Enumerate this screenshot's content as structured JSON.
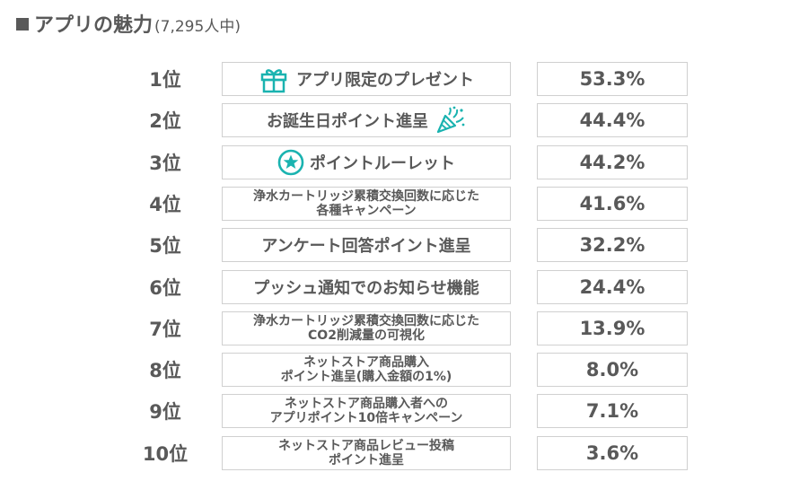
{
  "header": {
    "title": "アプリの魅力",
    "respondents": "(7,295人中)"
  },
  "colors": {
    "text": "#595959",
    "accent": "#1ab3b0",
    "border": "#d0d0d0"
  },
  "chart_data": {
    "type": "table",
    "rows": [
      {
        "rank": "1位",
        "label": "アプリ限定のプレゼント",
        "value": "53.3%",
        "icon": "gift-icon"
      },
      {
        "rank": "2位",
        "label": "お誕生日ポイント進呈",
        "value": "44.4%",
        "icon": "party-popper-icon"
      },
      {
        "rank": "3位",
        "label": "ポイントルーレット",
        "value": "44.2%",
        "icon": "star-circle-icon"
      },
      {
        "rank": "4位",
        "label": "浄水カートリッジ累積交換回数に応じた\n各種キャンペーン",
        "value": "41.6%"
      },
      {
        "rank": "5位",
        "label": "アンケート回答ポイント進呈",
        "value": "32.2%"
      },
      {
        "rank": "6位",
        "label": "プッシュ通知でのお知らせ機能",
        "value": "24.4%"
      },
      {
        "rank": "7位",
        "label": "浄水カートリッジ累積交換回数に応じた\nCO2削減量の可視化",
        "value": "13.9%"
      },
      {
        "rank": "8位",
        "label": "ネットストア商品購入\nポイント進呈(購入金額の1%)",
        "value": "8.0%"
      },
      {
        "rank": "9位",
        "label": "ネットストア商品購入者への\nアプリポイント10倍キャンペーン",
        "value": "7.1%"
      },
      {
        "rank": "10位",
        "label": "ネットストア商品レビュー投稿\nポイント進呈",
        "value": "3.6%"
      }
    ]
  }
}
